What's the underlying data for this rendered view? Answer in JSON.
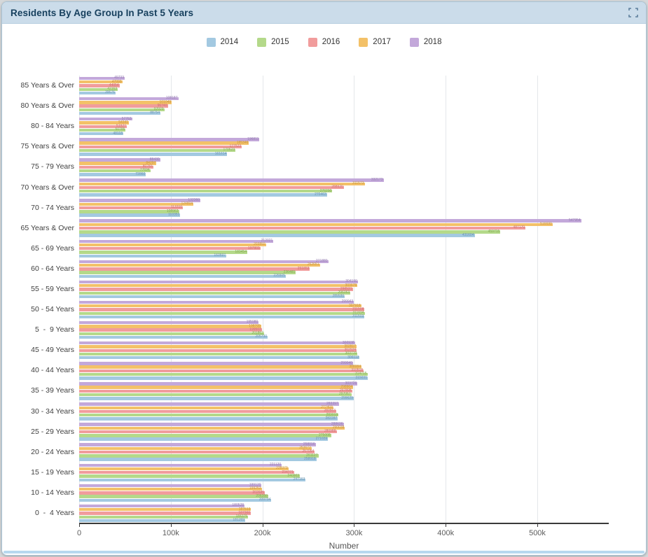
{
  "card": {
    "title": "Residents By Age Group In Past 5 Years"
  },
  "icons": {
    "expand": "fullscreen-corners"
  },
  "axis": {
    "xlabel": "Number"
  },
  "chart_data": {
    "type": "bar",
    "orientation": "horizontal",
    "title": "Residents By Age Group In Past 5 Years",
    "xlabel": "Number",
    "legend_position": "top",
    "grid": true,
    "xlim": [
      0,
      578000
    ],
    "xtick_labels": [
      "0",
      "100k",
      "200k",
      "300k",
      "400k",
      "500k"
    ],
    "xtick_values": [
      0,
      100000,
      200000,
      300000,
      400000,
      500000
    ],
    "bar_order_within_group_top_to_bottom": [
      "2018",
      "2017",
      "2016",
      "2015",
      "2014"
    ],
    "categories_top_to_bottom": [
      "85 Years & Over",
      "80 Years & Over",
      "80 - 84 Years",
      "75 Years & Over",
      "75 - 79 Years",
      "70 Years & Over",
      "70 - 74 Years",
      "65 Years & Over",
      "65 - 69 Years",
      "60 - 64 Years",
      "55 - 59 Years",
      "50 - 54 Years",
      "5  -  9 Years",
      "45 - 49 Years",
      "40 - 44 Years",
      "35 - 39 Years",
      "30 - 34 Years",
      "25 - 29 Years",
      "20 - 24 Years",
      "15 - 19 Years",
      "10 - 14 Years",
      "0  -  4 Years"
    ],
    "series": [
      {
        "name": "2014",
        "color": "#a3c9e1",
        "label_color": "#6b93ae",
        "values": [
          39676,
          88754,
          48118,
          161614,
          72860,
          270463,
          110351,
          431604,
          160597,
          225505,
          289930,
          311503,
          205730,
          306112,
          315031,
          299629,
          282287,
          271659,
          258918,
          247163,
          209794,
          181269
        ]
      },
      {
        "name": "2015",
        "color": "#b4d98a",
        "label_color": "#84a850",
        "values": [
          42163,
          92929,
          50785,
          170623,
          77694,
          276290,
          108962,
          459715,
          183454,
          236481,
          296063,
          311694,
          201862,
          303719,
          314715,
          297067,
          283019,
          275008,
          261127,
          240903,
          206388,
          184375
        ]
      },
      {
        "name": "2016",
        "color": "#f19c9c",
        "label_color": "#cc7070",
        "values": [
          44054,
          96740,
          51927,
          177523,
          80783,
          288920,
          113310,
          487170,
          197803,
          251853,
          298531,
          311508,
          199503,
          302924,
          310518,
          297898,
          280563,
          280988,
          257054,
          234771,
          202685,
          187360
        ]
      },
      {
        "name": "2017",
        "color": "#f3c168",
        "label_color": "#c69440",
        "values": [
          47099,
          101049,
          54341,
          185346,
          84297,
          311573,
          124804,
          516690,
          203892,
          262651,
          303678,
          307918,
          198705,
          302817,
          308084,
          298904,
          277403,
          290038,
          253672,
          228373,
          199253,
          187613
        ]
      },
      {
        "name": "2018",
        "color": "#c3a8da",
        "label_color": "#937bb1",
        "values": [
          49733,
          108187,
          57763,
          196811,
          88430,
          332173,
          132360,
          547954,
          212021,
          271880,
          304190,
          299943,
          195980,
          300938,
          299040,
          303726,
          283397,
          288636,
          258016,
          221120,
          199120,
          180528
        ]
      }
    ]
  }
}
